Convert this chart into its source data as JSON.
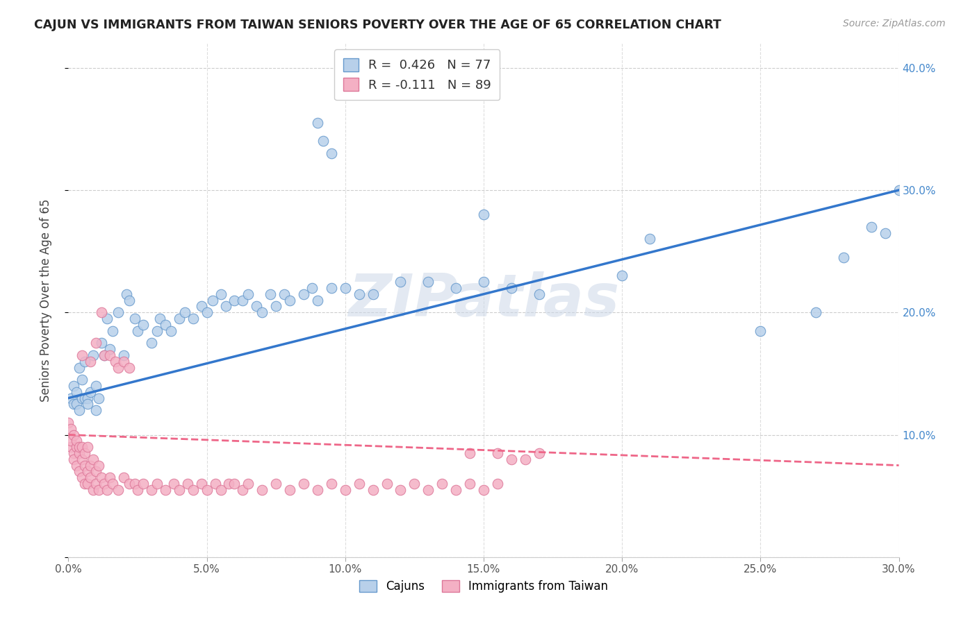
{
  "title": "CAJUN VS IMMIGRANTS FROM TAIWAN SENIORS POVERTY OVER THE AGE OF 65 CORRELATION CHART",
  "source": "Source: ZipAtlas.com",
  "ylabel": "Seniors Poverty Over the Age of 65",
  "xlim": [
    0.0,
    0.3
  ],
  "ylim": [
    0.0,
    0.42
  ],
  "xticks": [
    0.0,
    0.05,
    0.1,
    0.15,
    0.2,
    0.25,
    0.3
  ],
  "yticks": [
    0.0,
    0.1,
    0.2,
    0.3,
    0.4
  ],
  "ytick_right_labels": [
    "",
    "10.0%",
    "20.0%",
    "30.0%",
    "40.0%"
  ],
  "xtick_labels": [
    "0.0%",
    "5.0%",
    "10.0%",
    "15.0%",
    "20.0%",
    "25.0%",
    "30.0%"
  ],
  "cajun_color": "#b8d0ea",
  "cajun_edge_color": "#6699cc",
  "taiwan_color": "#f4b0c4",
  "taiwan_edge_color": "#dd7799",
  "trend_cajun_color": "#3377cc",
  "trend_taiwan_color": "#ee6688",
  "R_cajun": 0.426,
  "N_cajun": 77,
  "R_taiwan": -0.111,
  "N_taiwan": 89,
  "watermark": "ZIPatlas",
  "cajun_x": [
    0.001,
    0.002,
    0.002,
    0.003,
    0.003,
    0.004,
    0.004,
    0.005,
    0.005,
    0.006,
    0.006,
    0.007,
    0.007,
    0.008,
    0.009,
    0.01,
    0.01,
    0.011,
    0.012,
    0.013,
    0.014,
    0.015,
    0.016,
    0.018,
    0.02,
    0.021,
    0.022,
    0.024,
    0.025,
    0.027,
    0.03,
    0.032,
    0.033,
    0.035,
    0.037,
    0.04,
    0.042,
    0.045,
    0.048,
    0.05,
    0.052,
    0.055,
    0.057,
    0.06,
    0.063,
    0.065,
    0.068,
    0.07,
    0.073,
    0.075,
    0.078,
    0.08,
    0.085,
    0.088,
    0.09,
    0.095,
    0.1,
    0.105,
    0.11,
    0.12,
    0.13,
    0.14,
    0.15,
    0.16,
    0.17,
    0.09,
    0.092,
    0.095,
    0.15,
    0.2,
    0.21,
    0.25,
    0.27,
    0.28,
    0.29,
    0.295,
    0.3
  ],
  "cajun_y": [
    0.13,
    0.14,
    0.125,
    0.135,
    0.125,
    0.155,
    0.12,
    0.145,
    0.13,
    0.13,
    0.16,
    0.13,
    0.125,
    0.135,
    0.165,
    0.14,
    0.12,
    0.13,
    0.175,
    0.165,
    0.195,
    0.17,
    0.185,
    0.2,
    0.165,
    0.215,
    0.21,
    0.195,
    0.185,
    0.19,
    0.175,
    0.185,
    0.195,
    0.19,
    0.185,
    0.195,
    0.2,
    0.195,
    0.205,
    0.2,
    0.21,
    0.215,
    0.205,
    0.21,
    0.21,
    0.215,
    0.205,
    0.2,
    0.215,
    0.205,
    0.215,
    0.21,
    0.215,
    0.22,
    0.21,
    0.22,
    0.22,
    0.215,
    0.215,
    0.225,
    0.225,
    0.22,
    0.225,
    0.22,
    0.215,
    0.355,
    0.34,
    0.33,
    0.28,
    0.23,
    0.26,
    0.185,
    0.2,
    0.245,
    0.27,
    0.265,
    0.3
  ],
  "taiwan_x": [
    0.0,
    0.001,
    0.001,
    0.001,
    0.002,
    0.002,
    0.002,
    0.003,
    0.003,
    0.003,
    0.004,
    0.004,
    0.004,
    0.005,
    0.005,
    0.005,
    0.006,
    0.006,
    0.006,
    0.007,
    0.007,
    0.007,
    0.008,
    0.008,
    0.009,
    0.009,
    0.01,
    0.01,
    0.011,
    0.011,
    0.012,
    0.013,
    0.014,
    0.015,
    0.016,
    0.018,
    0.02,
    0.022,
    0.024,
    0.025,
    0.027,
    0.03,
    0.032,
    0.035,
    0.038,
    0.04,
    0.043,
    0.045,
    0.048,
    0.05,
    0.053,
    0.055,
    0.058,
    0.06,
    0.063,
    0.065,
    0.07,
    0.075,
    0.08,
    0.085,
    0.09,
    0.095,
    0.1,
    0.105,
    0.11,
    0.115,
    0.12,
    0.125,
    0.13,
    0.135,
    0.14,
    0.145,
    0.15,
    0.155,
    0.145,
    0.155,
    0.16,
    0.165,
    0.17,
    0.008,
    0.005,
    0.01,
    0.012,
    0.013,
    0.015,
    0.017,
    0.018,
    0.02,
    0.022
  ],
  "taiwan_y": [
    0.11,
    0.105,
    0.09,
    0.095,
    0.085,
    0.1,
    0.08,
    0.09,
    0.075,
    0.095,
    0.085,
    0.07,
    0.09,
    0.08,
    0.065,
    0.09,
    0.075,
    0.06,
    0.085,
    0.07,
    0.09,
    0.06,
    0.075,
    0.065,
    0.08,
    0.055,
    0.07,
    0.06,
    0.075,
    0.055,
    0.065,
    0.06,
    0.055,
    0.065,
    0.06,
    0.055,
    0.065,
    0.06,
    0.06,
    0.055,
    0.06,
    0.055,
    0.06,
    0.055,
    0.06,
    0.055,
    0.06,
    0.055,
    0.06,
    0.055,
    0.06,
    0.055,
    0.06,
    0.06,
    0.055,
    0.06,
    0.055,
    0.06,
    0.055,
    0.06,
    0.055,
    0.06,
    0.055,
    0.06,
    0.055,
    0.06,
    0.055,
    0.06,
    0.055,
    0.06,
    0.055,
    0.06,
    0.055,
    0.06,
    0.085,
    0.085,
    0.08,
    0.08,
    0.085,
    0.16,
    0.165,
    0.175,
    0.2,
    0.165,
    0.165,
    0.16,
    0.155,
    0.16,
    0.155
  ]
}
